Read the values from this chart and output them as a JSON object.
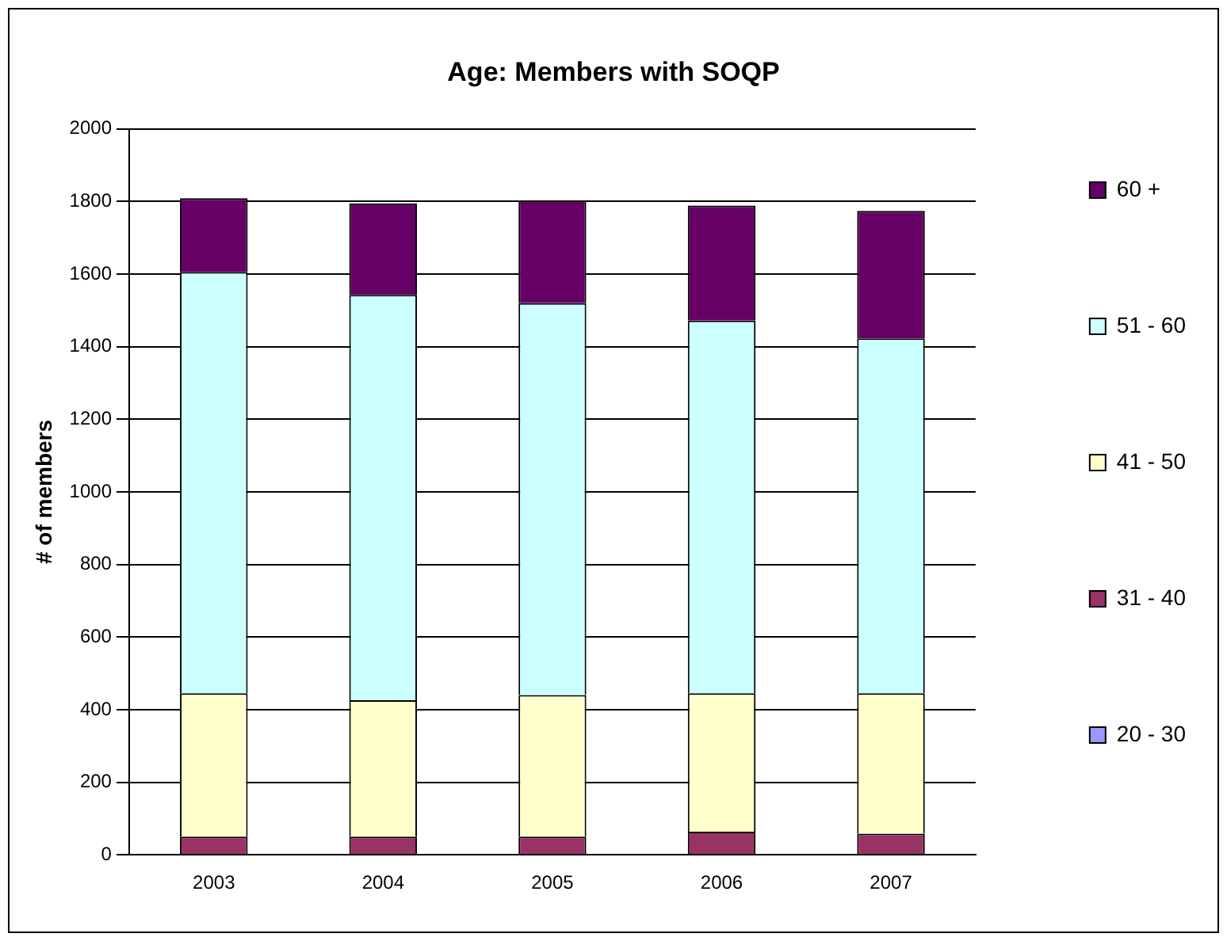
{
  "chart_data": {
    "type": "bar",
    "title": "Age: Members with SOQP",
    "ylabel": "# of members",
    "categories": [
      "2003",
      "2004",
      "2005",
      "2006",
      "2007"
    ],
    "stacked": true,
    "ylim": [
      0,
      2000
    ],
    "yticks": [
      0,
      200,
      400,
      600,
      800,
      1000,
      1200,
      1400,
      1600,
      1800,
      2000
    ],
    "grid": "y",
    "legend": "right",
    "series": [
      {
        "name": "20 - 30",
        "color": "#9999ff",
        "values": [
          null,
          null,
          null,
          null,
          null
        ]
      },
      {
        "name": "31 - 40",
        "color": "#993366",
        "values": [
          50,
          50,
          50,
          64,
          58
        ]
      },
      {
        "name": "41 - 50",
        "color": "#ffffcc",
        "values": [
          395,
          376,
          390,
          381,
          387
        ]
      },
      {
        "name": "51 - 60",
        "color": "#ccffff",
        "values": [
          1161,
          1117,
          1080,
          1027,
          978
        ]
      },
      {
        "name": "60 +",
        "color": "#660066",
        "values": [
          203,
          252,
          283,
          317,
          351
        ]
      }
    ]
  }
}
